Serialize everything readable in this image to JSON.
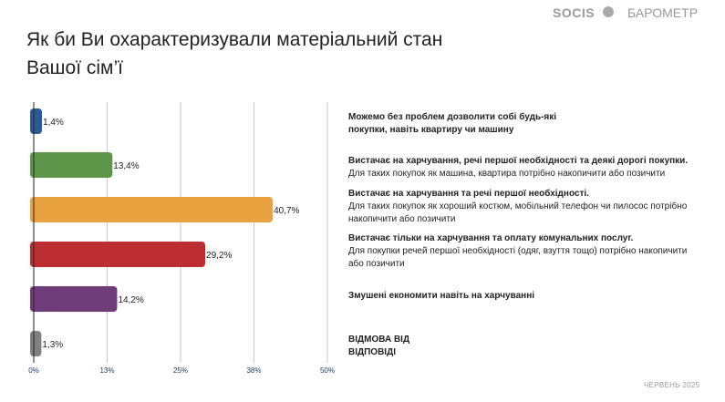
{
  "header": {
    "title_line1": "Як би Ви охарактеризували матеріальний стан",
    "title_line2": "Вашої сім’ї",
    "logo": "SOCIS",
    "brand": "БАРОМЕТР"
  },
  "footer": "ЧЕРВЕНЬ 2025",
  "chart_data": {
    "type": "bar",
    "orientation": "horizontal",
    "title": "Як би Ви охарактеризували матеріальний стан Вашої сім’ї",
    "xlim": [
      0,
      50
    ],
    "ticks": [
      "0%",
      "13%",
      "25%",
      "38%",
      "50%"
    ],
    "tick_values": [
      0,
      12.5,
      25,
      37.5,
      50
    ],
    "grid": true,
    "values": [
      1.4,
      13.4,
      40.7,
      29.2,
      14.2,
      1.3
    ],
    "value_labels": [
      "1,4%",
      "13,4%",
      "40,7%",
      "29,2%",
      "14,2%",
      "1,3%"
    ],
    "colors": [
      "#2d5a94",
      "#5e974a",
      "#e8a23f",
      "#bc2e32",
      "#6e3d7a",
      "#808080"
    ],
    "categories": [
      {
        "bold": "Можемо без проблем дозволити собі будь-які покупки, навіть квартиру чи машину",
        "note": ""
      },
      {
        "bold": "Вистачає на харчування, речі першої необхідності та деякі дорогі покупки.",
        "note": "Для таких покупок як машина, квартира потрібно накопичити або позичити"
      },
      {
        "bold": "Вистачає на харчування та речі першої необхідності.",
        "note": "Для таких покупок як хороший костюм, мобільний телефон чи пилосос потрібно накопичити або позичити"
      },
      {
        "bold": "Вистачає тільки на харчування та оплату комунальних послуг.",
        "note": "Для покупки речей першої необхідності (одяг, взуття тощо) потрібно накопичити або позичити"
      },
      {
        "bold": "Змушені економити навіть на харчуванні",
        "note": ""
      },
      {
        "bold": "ВІДМОВА ВІД ВІДПОВІДІ",
        "note": ""
      }
    ]
  }
}
